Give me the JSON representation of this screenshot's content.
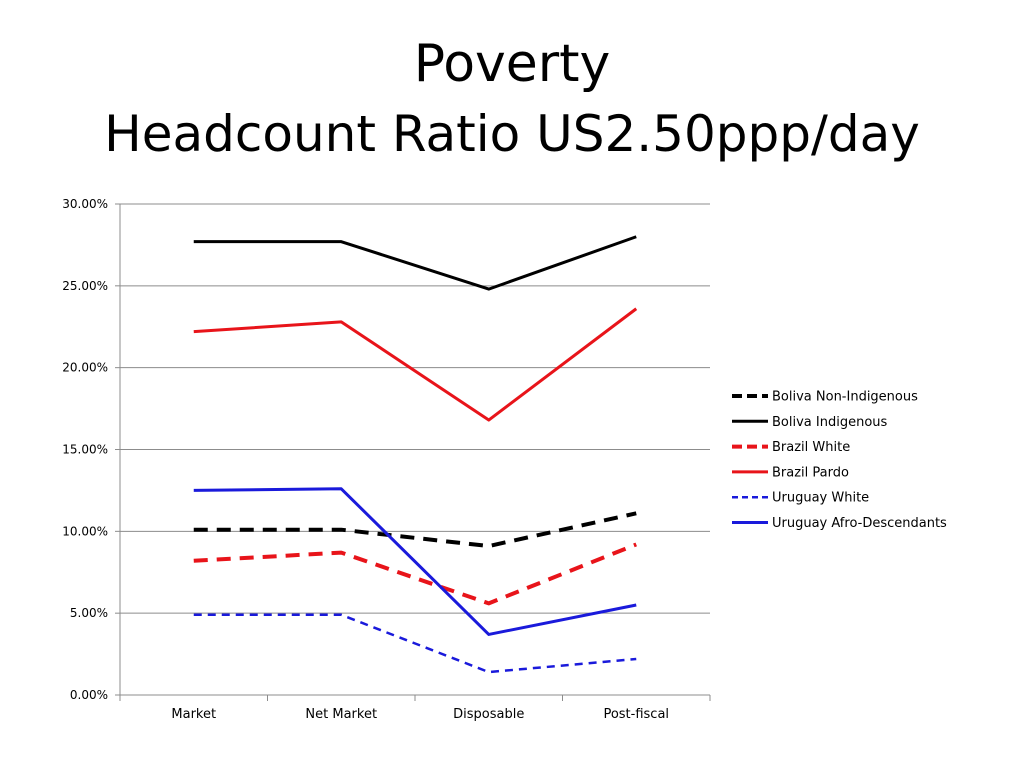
{
  "slide": {
    "title_line1": "Poverty",
    "title_line2": "Headcount Ratio US2.50ppp/day"
  },
  "chart_data": {
    "type": "line",
    "title": "Poverty Headcount Ratio US2.50ppp/day",
    "xlabel": "",
    "ylabel": "",
    "categories": [
      "Market",
      "Net Market",
      "Disposable",
      "Post-fiscal"
    ],
    "ylim": [
      0,
      30
    ],
    "yticks": [
      0,
      5,
      10,
      15,
      20,
      25,
      30
    ],
    "ytick_labels": [
      "0.00%",
      "5.00%",
      "10.00%",
      "15.00%",
      "20.00%",
      "25.00%",
      "30.00%"
    ],
    "grid": true,
    "legend_position": "right",
    "series": [
      {
        "name": "Boliva Non-Indigenous",
        "values": [
          10.1,
          10.1,
          9.1,
          11.1
        ],
        "color": "#000000",
        "dash": "dashed",
        "width": "thick"
      },
      {
        "name": "Boliva Indigenous",
        "values": [
          27.7,
          27.7,
          24.8,
          28.0
        ],
        "color": "#000000",
        "dash": "solid",
        "width": "normal"
      },
      {
        "name": "Brazil White",
        "values": [
          8.2,
          8.7,
          5.6,
          9.2
        ],
        "color": "#e8141a",
        "dash": "dashed",
        "width": "thick"
      },
      {
        "name": "Brazil Pardo",
        "values": [
          22.2,
          22.8,
          16.8,
          23.6
        ],
        "color": "#e8141a",
        "dash": "solid",
        "width": "normal"
      },
      {
        "name": "Uruguay White",
        "values": [
          4.9,
          4.9,
          1.4,
          2.2
        ],
        "color": "#1a1adb",
        "dash": "dotted",
        "width": "normal"
      },
      {
        "name": "Uruguay Afro-Descendants",
        "values": [
          12.5,
          12.6,
          3.7,
          5.5
        ],
        "color": "#1a1adb",
        "dash": "solid",
        "width": "normal"
      }
    ]
  }
}
